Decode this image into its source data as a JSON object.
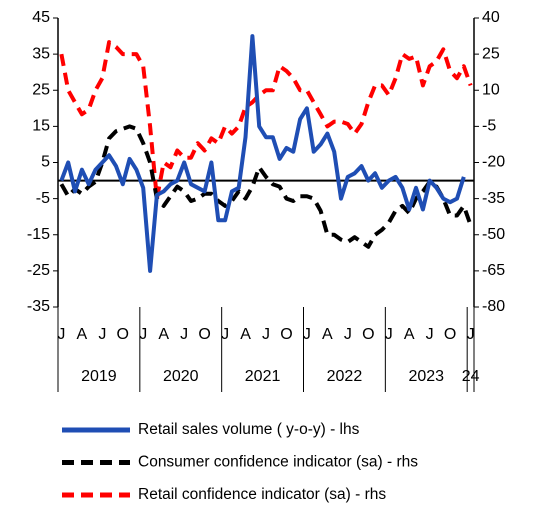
{
  "chart_data": {
    "type": "line",
    "categories": [
      "J",
      null,
      null,
      "A",
      null,
      null,
      "J",
      null,
      null,
      "O",
      null,
      null,
      "J",
      null,
      null,
      "A",
      null,
      null,
      "J",
      null,
      null,
      "O",
      null,
      null,
      "J",
      null,
      null,
      "A",
      null,
      null,
      "J",
      null,
      null,
      "O",
      null,
      null,
      "J",
      null,
      null,
      "A",
      null,
      null,
      "J",
      null,
      null,
      "O",
      null,
      null,
      "J",
      null,
      null,
      "A",
      null,
      null,
      "J",
      null,
      null,
      "O",
      null,
      null,
      "J"
    ],
    "year_labels": [
      "2019",
      "2020",
      "2021",
      "2022",
      "2023",
      "24"
    ],
    "ylim": [
      -35,
      45
    ],
    "yticks": [
      -35,
      -25,
      -15,
      -5,
      5,
      15,
      25,
      35,
      45
    ],
    "y2lim": [
      -80,
      40
    ],
    "y2ticks": [
      -80,
      -65,
      -50,
      -35,
      -20,
      -5,
      10,
      25,
      40
    ],
    "series": [
      {
        "name": "Retail sales volume ( y-o-y) - lhs",
        "color": "#1f4eb4",
        "dash": false,
        "values": [
          0,
          5,
          -3,
          3,
          -1,
          3,
          5,
          7,
          4,
          -1,
          6,
          3,
          -2,
          -25,
          -4,
          -3,
          -1,
          0,
          5,
          -1,
          -2,
          -3,
          5,
          -11,
          -11,
          -3,
          -2,
          12,
          40,
          15,
          12,
          12,
          6,
          9,
          8,
          17,
          20,
          8,
          10,
          13,
          8,
          -5,
          1,
          2,
          4,
          0,
          2,
          -2,
          0,
          1,
          -2,
          -8,
          -2,
          -8,
          0,
          -2,
          -5,
          -6,
          -5,
          1,
          null
        ]
      },
      {
        "name": "Consumer confidence indicator (sa) - rhs",
        "color": "#000000",
        "dash": true,
        "axis": "y2",
        "values": [
          -29,
          -34,
          -31,
          -33,
          -30,
          -28,
          -20,
          -10,
          -7,
          -6,
          -5,
          -6,
          -12,
          -20,
          -35,
          -38,
          -34,
          -30,
          -32,
          -36,
          -35,
          -33,
          -33,
          -36,
          -38,
          -36,
          -32,
          -35,
          -30,
          -22,
          -26,
          -29,
          -30,
          -35,
          -36,
          -34,
          -34,
          -35,
          -40,
          -50,
          -50,
          -52,
          -53,
          -51,
          -53,
          -55,
          -50,
          -48,
          -45,
          -40,
          -38,
          -41,
          -35,
          -32,
          -28,
          -30,
          -35,
          -42,
          -42,
          -38,
          -46
        ]
      },
      {
        "name": "Retail confidence indicator (sa) - rhs",
        "color": "#ff0000",
        "dash": true,
        "axis": "y2",
        "values": [
          25,
          10,
          5,
          0,
          2,
          10,
          15,
          30,
          28,
          25,
          25,
          25,
          20,
          -5,
          -35,
          -20,
          -22,
          -15,
          -18,
          -18,
          -12,
          -15,
          -10,
          -12,
          -5,
          -8,
          -5,
          3,
          5,
          8,
          10,
          10,
          20,
          18,
          15,
          10,
          10,
          5,
          0,
          -5,
          -3,
          -3,
          -4,
          -8,
          -4,
          5,
          12,
          12,
          8,
          15,
          25,
          23,
          24,
          12,
          20,
          22,
          27,
          18,
          15,
          20,
          12
        ]
      }
    ]
  }
}
